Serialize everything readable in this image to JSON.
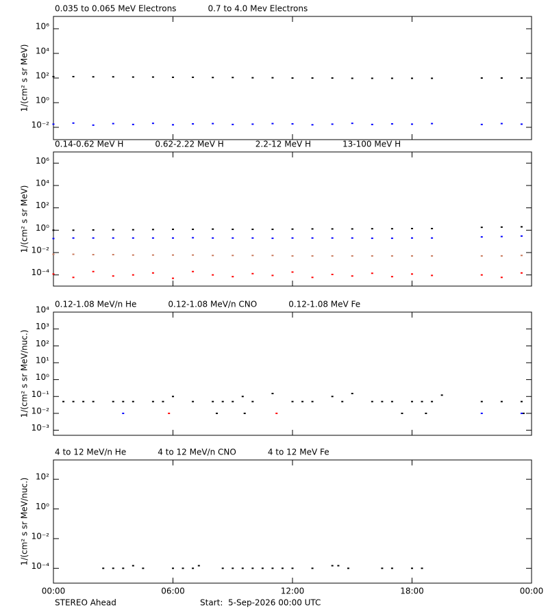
{
  "chart_data": [
    {
      "type": "scatter",
      "log": true,
      "ylabel": "1/(cm² s sr MeV)",
      "ylim": [
        0.001,
        10000000
      ],
      "yticks": [
        {
          "value": 1000000,
          "label": "10⁶"
        },
        {
          "value": 10000,
          "label": "10⁴"
        },
        {
          "value": 100,
          "label": "10²"
        },
        {
          "value": 1,
          "label": "10⁰"
        },
        {
          "value": 0.01,
          "label": "10⁻²"
        }
      ],
      "x": [
        0,
        1,
        2,
        3,
        4,
        5,
        6,
        7,
        8,
        9,
        10,
        11,
        12,
        13,
        14,
        15,
        16,
        17,
        18,
        19,
        21.5,
        22.5,
        23.5
      ],
      "series": [
        {
          "name": "0.035 to 0.065 MeV Electrons",
          "color": "#000000",
          "values": [
            130,
            130,
            125,
            125,
            120,
            120,
            115,
            115,
            110,
            110,
            105,
            105,
            100,
            100,
            100,
            95,
            95,
            95,
            95,
            95,
            100,
            100,
            100
          ]
        },
        {
          "name": "0.7 to 4.0 Mev Electrons",
          "color": "#0000ff",
          "values": [
            0.018,
            0.022,
            0.015,
            0.02,
            0.017,
            0.021,
            0.016,
            0.019,
            0.02,
            0.017,
            0.018,
            0.02,
            0.019,
            0.016,
            0.018,
            0.021,
            0.017,
            0.019,
            0.018,
            0.02,
            0.017,
            0.02,
            0.018
          ]
        }
      ]
    },
    {
      "type": "scatter",
      "log": true,
      "ylabel": "1/(cm² s sr MeV)",
      "ylim": [
        1e-05,
        10000000
      ],
      "yticks": [
        {
          "value": 1000000,
          "label": "10⁶"
        },
        {
          "value": 10000,
          "label": "10⁴"
        },
        {
          "value": 100,
          "label": "10²"
        },
        {
          "value": 1,
          "label": "10⁰"
        },
        {
          "value": 0.01,
          "label": "10⁻²"
        },
        {
          "value": 0.0001,
          "label": "10⁻⁴"
        }
      ],
      "x": [
        0,
        1,
        2,
        3,
        4,
        5,
        6,
        7,
        8,
        9,
        10,
        11,
        12,
        13,
        14,
        15,
        16,
        17,
        18,
        19,
        21.5,
        22.5,
        23.5
      ],
      "series": [
        {
          "name": "0.14-0.62 MeV H",
          "color": "#000000",
          "values": [
            1.0,
            1.0,
            1.05,
            1.1,
            1.1,
            1.15,
            1.2,
            1.2,
            1.25,
            1.2,
            1.2,
            1.2,
            1.25,
            1.3,
            1.3,
            1.3,
            1.35,
            1.35,
            1.4,
            1.4,
            1.8,
            1.9,
            2.0
          ]
        },
        {
          "name": "0.62-2.22 MeV H",
          "color": "#0000ff",
          "values": [
            0.18,
            0.2,
            0.2,
            0.2,
            0.2,
            0.2,
            0.2,
            0.21,
            0.2,
            0.2,
            0.2,
            0.19,
            0.2,
            0.2,
            0.2,
            0.2,
            0.19,
            0.19,
            0.2,
            0.2,
            0.25,
            0.27,
            0.3
          ]
        },
        {
          "name": "2.2-12 MeV H",
          "color": "#c8785a",
          "values": [
            0.007,
            0.007,
            0.0065,
            0.0065,
            0.006,
            0.006,
            0.006,
            0.006,
            0.0055,
            0.0055,
            0.0055,
            0.0055,
            0.005,
            0.005,
            0.005,
            0.005,
            0.005,
            0.005,
            0.005,
            0.005,
            0.005,
            0.005,
            0.0055
          ]
        },
        {
          "name": "13-100 MeV H",
          "color": "#ff0000",
          "values": [
            0.00012,
            6e-05,
            0.0002,
            8e-05,
            0.0001,
            0.00015,
            5e-05,
            0.0002,
            0.0001,
            7e-05,
            0.00013,
            9e-05,
            0.00018,
            6e-05,
            0.00011,
            8e-05,
            0.00014,
            7e-05,
            0.00012,
            9e-05,
            0.0001,
            6e-05,
            0.00015
          ]
        }
      ]
    },
    {
      "type": "scatter",
      "log": true,
      "ylabel": "1/(cm² s sr MeV/nuc.)",
      "ylim": [
        0.0005,
        10000
      ],
      "yticks": [
        {
          "value": 10000,
          "label": "10⁴"
        },
        {
          "value": 1000,
          "label": "10³"
        },
        {
          "value": 100,
          "label": "10²"
        },
        {
          "value": 10,
          "label": "10¹"
        },
        {
          "value": 1,
          "label": "10⁰"
        },
        {
          "value": 0.1,
          "label": "10⁻¹"
        },
        {
          "value": 0.01,
          "label": "10⁻²"
        },
        {
          "value": 0.001,
          "label": "10⁻³"
        }
      ],
      "series": [
        {
          "name": "0.12-1.08 MeV/n He",
          "color": "#000000",
          "x": [
            0.5,
            1,
            1.5,
            2,
            3,
            3.5,
            4,
            5,
            5.5,
            6,
            7,
            8,
            8.2,
            8.5,
            9,
            9.5,
            9.6,
            10,
            11,
            12,
            12.5,
            13,
            14,
            14.5,
            15,
            16,
            16.5,
            17,
            17.5,
            18,
            18.5,
            18.7,
            19,
            19.5,
            21.5,
            22.5,
            23.5,
            23.6
          ],
          "values": [
            0.05,
            0.05,
            0.05,
            0.05,
            0.05,
            0.05,
            0.05,
            0.05,
            0.05,
            0.1,
            0.05,
            0.05,
            0.01,
            0.05,
            0.05,
            0.1,
            0.01,
            0.05,
            0.15,
            0.05,
            0.05,
            0.05,
            0.1,
            0.05,
            0.15,
            0.05,
            0.05,
            0.05,
            0.01,
            0.05,
            0.05,
            0.01,
            0.05,
            0.12,
            0.05,
            0.05,
            0.05,
            0.01
          ]
        },
        {
          "name": "0.12-1.08 MeV/n CNO",
          "color": "#0000ff",
          "x": [
            3.5,
            21.5,
            23.5
          ],
          "values": [
            0.01,
            0.01,
            0.01
          ]
        },
        {
          "name": "0.12-1.08 MeV Fe",
          "color": "#ff0000",
          "x": [
            5.8,
            11.2
          ],
          "values": [
            0.01,
            0.01
          ]
        }
      ]
    },
    {
      "type": "scatter",
      "log": true,
      "ylabel": "1/(cm² s sr MeV/nuc.)",
      "ylim": [
        1e-05,
        2000
      ],
      "yticks": [
        {
          "value": 100,
          "label": "10²"
        },
        {
          "value": 1,
          "label": "10⁰"
        },
        {
          "value": 0.01,
          "label": "10⁻²"
        },
        {
          "value": 0.0001,
          "label": "10⁻⁴"
        }
      ],
      "xlim": [
        0,
        24
      ],
      "xticks": [
        {
          "value": 0,
          "label": "00:00"
        },
        {
          "value": 6,
          "label": "06:00"
        },
        {
          "value": 12,
          "label": "12:00"
        },
        {
          "value": 18,
          "label": "18:00"
        },
        {
          "value": 24,
          "label": "00:00"
        }
      ],
      "series": [
        {
          "name": "4 to 12 MeV/n He",
          "color": "#000000",
          "x": [
            2.5,
            3,
            3.5,
            4,
            4.5,
            6,
            6.5,
            7,
            7.3,
            8.5,
            9,
            9.5,
            10,
            10.5,
            11,
            11.5,
            12,
            13,
            14,
            14.3,
            14.8,
            16.5,
            17,
            18,
            18.5
          ],
          "values": [
            0.0001,
            0.0001,
            0.0001,
            0.00015,
            0.0001,
            0.0001,
            0.0001,
            0.0001,
            0.00015,
            0.0001,
            0.0001,
            0.0001,
            0.0001,
            0.0001,
            0.0001,
            0.0001,
            0.0001,
            0.0001,
            0.00015,
            0.00015,
            0.0001,
            0.0001,
            0.0001,
            0.0001,
            0.0001
          ]
        },
        {
          "name": "4 to 12 MeV/n CNO",
          "color": "#0000ff",
          "x": [],
          "values": []
        },
        {
          "name": "4 to 12 MeV Fe",
          "color": "#ff0000",
          "x": [],
          "values": []
        }
      ]
    }
  ],
  "footer": {
    "left": "STEREO Ahead",
    "start": "Start:  5-Sep-2026 00:00 UTC"
  }
}
